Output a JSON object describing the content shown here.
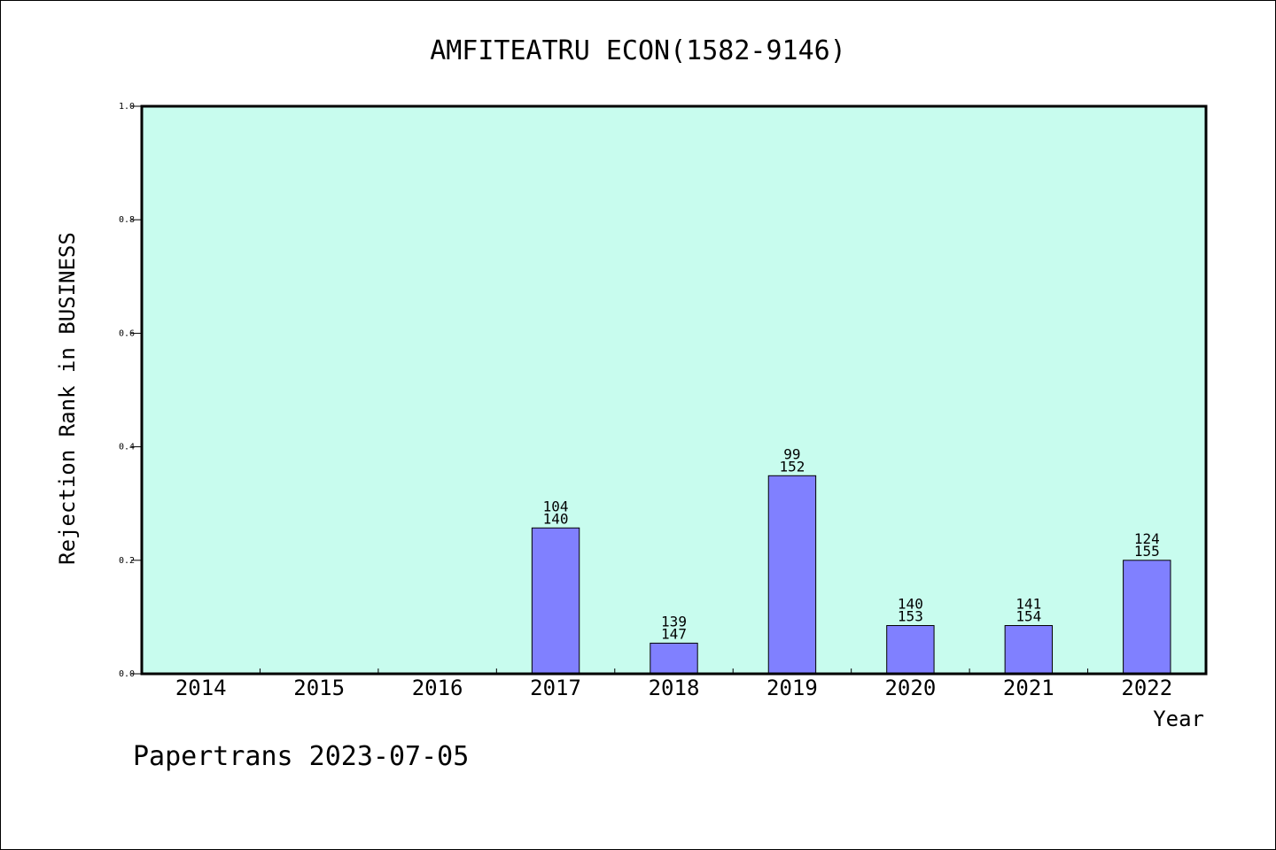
{
  "chart_data": {
    "type": "bar",
    "title": "AMFITEATRU ECON(1582-9146)",
    "xlabel": "Year",
    "ylabel": "Rejection Rank in BUSINESS",
    "footer": "Papertrans 2023-07-05",
    "ylim": [
      0,
      1.0
    ],
    "yticks": [
      "0.0",
      "0.2",
      "0.4",
      "0.6",
      "0.8",
      "1.0"
    ],
    "categories": [
      "2014",
      "2015",
      "2016",
      "2017",
      "2018",
      "2019",
      "2020",
      "2021",
      "2022"
    ],
    "values": [
      0,
      0,
      0,
      0.257,
      0.054,
      0.349,
      0.085,
      0.085,
      0.2
    ],
    "bar_labels": [
      null,
      null,
      null,
      [
        "104",
        "140"
      ],
      [
        "139",
        "147"
      ],
      [
        "99",
        "152"
      ],
      [
        "140",
        "153"
      ],
      [
        "141",
        "154"
      ],
      [
        "124",
        "155"
      ]
    ],
    "grid": false,
    "colors": {
      "plot_bg": "#c8fcee",
      "bar": "#8080ff",
      "bar_edge": "#000000"
    }
  }
}
